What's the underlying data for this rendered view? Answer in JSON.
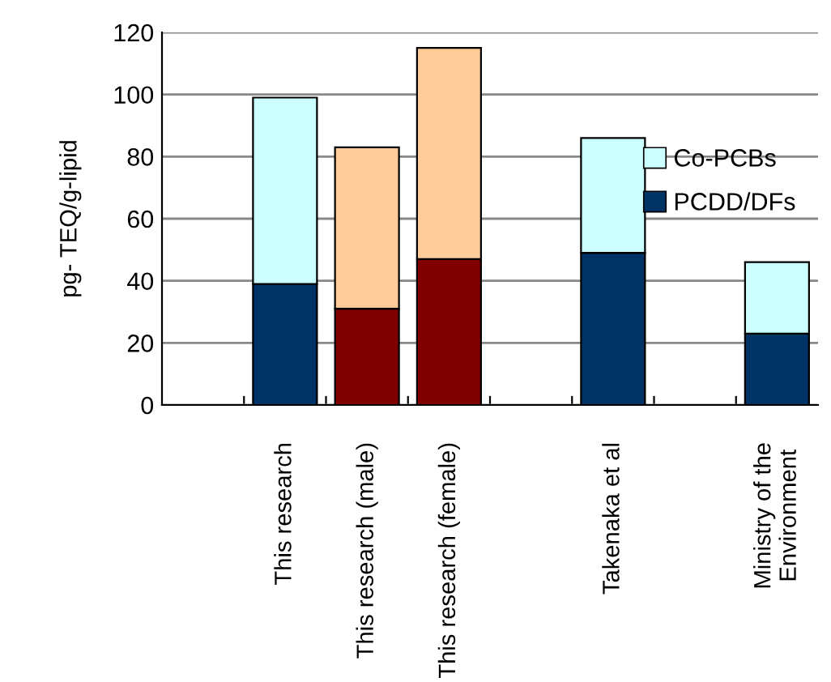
{
  "chart_data": {
    "type": "bar",
    "stacked": true,
    "ylabel": "pg- TEQ/g-lipid",
    "categories": [
      null,
      "This research",
      "This research (male)",
      "This research (female)",
      null,
      "Takenaka et al",
      null,
      "Ministry of the\nEnvironment"
    ],
    "series": [
      {
        "name": "PCDD/DFs",
        "color": "#003366",
        "colors": [
          null,
          "#003366",
          "#800000",
          "#800000",
          null,
          "#003366",
          null,
          "#003366"
        ],
        "values": [
          null,
          39,
          31,
          47,
          null,
          49,
          null,
          23
        ]
      },
      {
        "name": "Co-PCBs",
        "color": "#ccffff",
        "colors": [
          null,
          "#ccffff",
          "#ffcc99",
          "#ffcc99",
          null,
          "#ccffff",
          null,
          "#ccffff"
        ],
        "values": [
          null,
          60,
          52,
          68,
          null,
          37,
          null,
          23
        ]
      }
    ],
    "ylim": [
      0,
      120
    ],
    "yticks": [
      0,
      20,
      40,
      60,
      80,
      100,
      120
    ],
    "grid": "y",
    "legend": "right"
  }
}
